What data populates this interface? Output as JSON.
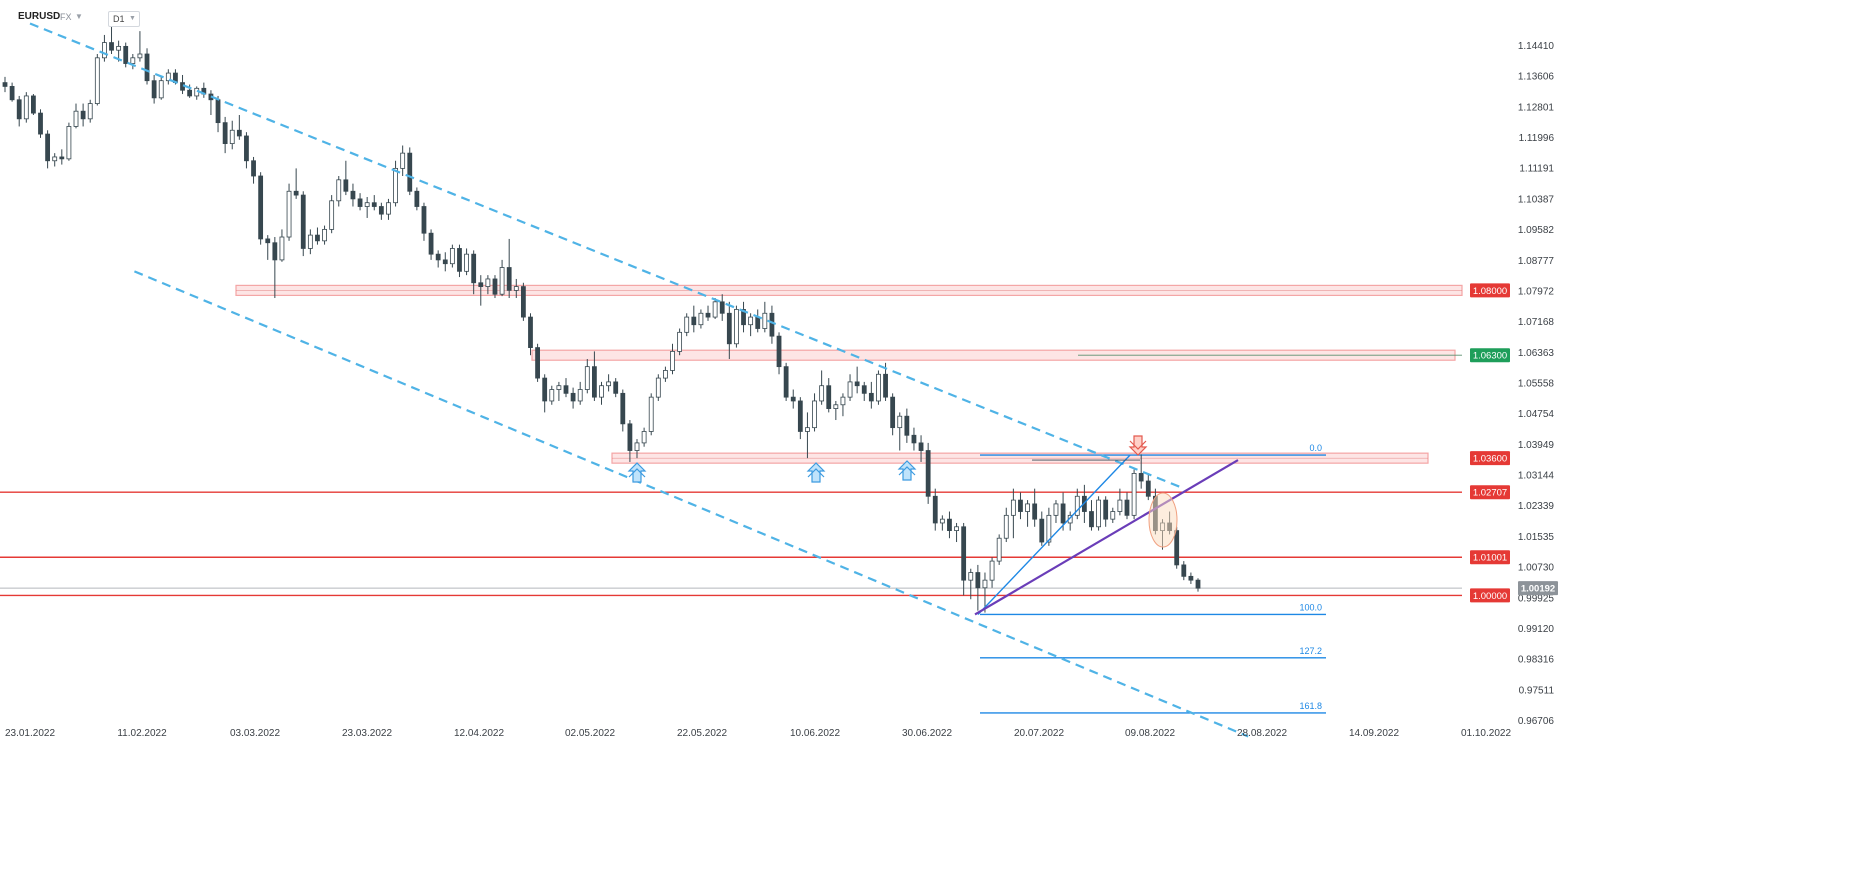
{
  "header": {
    "symbol": "EURUSD",
    "market": "FX",
    "timeframe": "D1"
  },
  "colors": {
    "bull": "#ffffff",
    "bear": "#37474f",
    "channel": "#4fb3e6",
    "support_line": "#e53935",
    "zone": "#f4a5a5",
    "fib": "#1e88e5",
    "trendline": "#6a3db8",
    "current": "#8d9399",
    "badge_red": "#e53935",
    "badge_green": "#1e9e5a"
  },
  "chart_data": {
    "type": "candlestick",
    "symbol": "EURUSD",
    "timeframe": "D1",
    "ylim": [
      0.963,
      1.149
    ],
    "y_ticks": [
      1.1441,
      1.13606,
      1.12801,
      1.11996,
      1.11191,
      1.10387,
      1.09582,
      1.08777,
      1.07972,
      1.07168,
      1.06363,
      1.05558,
      1.04754,
      1.03949,
      1.03144,
      1.02339,
      1.01535,
      1.0073,
      0.99925,
      0.9912,
      0.98316,
      0.97511,
      0.96706
    ],
    "x_labels": [
      "23.01.2022",
      "11.02.2022",
      "03.03.2022",
      "23.03.2022",
      "12.04.2022",
      "02.05.2022",
      "22.05.2022",
      "10.06.2022",
      "30.06.2022",
      "20.07.2022",
      "09.08.2022",
      "28.08.2022",
      "14.09.2022",
      "01.10.2022"
    ],
    "candles": [
      [
        1.1345,
        1.136,
        1.132,
        1.1335
      ],
      [
        1.1335,
        1.1345,
        1.1295,
        1.13
      ],
      [
        1.13,
        1.131,
        1.123,
        1.125
      ],
      [
        1.125,
        1.132,
        1.124,
        1.131
      ],
      [
        1.131,
        1.1315,
        1.126,
        1.1265
      ],
      [
        1.1265,
        1.1275,
        1.12,
        1.121
      ],
      [
        1.121,
        1.122,
        1.112,
        1.114
      ],
      [
        1.114,
        1.116,
        1.1125,
        1.115
      ],
      [
        1.115,
        1.117,
        1.113,
        1.1145
      ],
      [
        1.1145,
        1.124,
        1.114,
        1.123
      ],
      [
        1.123,
        1.129,
        1.1225,
        1.127
      ],
      [
        1.127,
        1.129,
        1.123,
        1.125
      ],
      [
        1.125,
        1.13,
        1.124,
        1.129
      ],
      [
        1.129,
        1.142,
        1.1285,
        1.141
      ],
      [
        1.141,
        1.147,
        1.14,
        1.145
      ],
      [
        1.145,
        1.1495,
        1.142,
        1.143
      ],
      [
        1.143,
        1.1455,
        1.14,
        1.144
      ],
      [
        1.144,
        1.145,
        1.1385,
        1.1395
      ],
      [
        1.1395,
        1.142,
        1.138,
        1.141
      ],
      [
        1.141,
        1.148,
        1.14,
        1.142
      ],
      [
        1.142,
        1.1435,
        1.134,
        1.135
      ],
      [
        1.135,
        1.1365,
        1.129,
        1.1305
      ],
      [
        1.1305,
        1.136,
        1.13,
        1.135
      ],
      [
        1.135,
        1.138,
        1.134,
        1.137
      ],
      [
        1.137,
        1.138,
        1.134,
        1.1345
      ],
      [
        1.1345,
        1.1365,
        1.1315,
        1.1325
      ],
      [
        1.1325,
        1.134,
        1.1305,
        1.131
      ],
      [
        1.131,
        1.1335,
        1.13,
        1.133
      ],
      [
        1.133,
        1.1345,
        1.1305,
        1.1315
      ],
      [
        1.1315,
        1.1325,
        1.126,
        1.13
      ],
      [
        1.13,
        1.131,
        1.1215,
        1.124
      ],
      [
        1.124,
        1.1255,
        1.116,
        1.1185
      ],
      [
        1.1185,
        1.1245,
        1.117,
        1.122
      ],
      [
        1.122,
        1.126,
        1.1195,
        1.1205
      ],
      [
        1.1205,
        1.1215,
        1.112,
        1.114
      ],
      [
        1.114,
        1.115,
        1.108,
        1.11
      ],
      [
        1.11,
        1.111,
        1.092,
        1.0935
      ],
      [
        1.0935,
        1.0945,
        1.088,
        1.0925
      ],
      [
        1.0925,
        1.094,
        1.078,
        1.088
      ],
      [
        1.088,
        1.096,
        1.0875,
        1.094
      ],
      [
        1.094,
        1.108,
        1.093,
        1.106
      ],
      [
        1.106,
        1.112,
        1.104,
        1.105
      ],
      [
        1.105,
        1.106,
        1.089,
        1.091
      ],
      [
        1.091,
        1.096,
        1.0895,
        1.0945
      ],
      [
        1.0945,
        1.0965,
        1.092,
        1.093
      ],
      [
        1.093,
        1.097,
        1.092,
        1.096
      ],
      [
        1.096,
        1.105,
        1.095,
        1.1035
      ],
      [
        1.1035,
        1.11,
        1.102,
        1.109
      ],
      [
        1.109,
        1.114,
        1.105,
        1.106
      ],
      [
        1.106,
        1.108,
        1.102,
        1.104
      ],
      [
        1.104,
        1.1055,
        1.101,
        1.102
      ],
      [
        1.102,
        1.1045,
        1.099,
        1.103
      ],
      [
        1.103,
        1.105,
        1.101,
        1.102
      ],
      [
        1.102,
        1.103,
        1.0985,
        1.1
      ],
      [
        1.1,
        1.104,
        1.0985,
        1.103
      ],
      [
        1.103,
        1.114,
        1.102,
        1.112
      ],
      [
        1.112,
        1.118,
        1.11,
        1.116
      ],
      [
        1.116,
        1.1175,
        1.105,
        1.106
      ],
      [
        1.106,
        1.107,
        1.101,
        1.102
      ],
      [
        1.102,
        1.103,
        1.093,
        1.095
      ],
      [
        1.095,
        1.096,
        1.088,
        1.0895
      ],
      [
        1.0895,
        1.0905,
        1.086,
        1.088
      ],
      [
        1.088,
        1.09,
        1.085,
        1.087
      ],
      [
        1.087,
        1.092,
        1.086,
        1.091
      ],
      [
        1.091,
        1.092,
        1.0835,
        1.085
      ],
      [
        1.085,
        1.091,
        1.084,
        1.0895
      ],
      [
        1.0895,
        1.0905,
        1.079,
        1.082
      ],
      [
        1.082,
        1.084,
        1.076,
        1.081
      ],
      [
        1.081,
        1.084,
        1.079,
        1.083
      ],
      [
        1.083,
        1.084,
        1.078,
        1.079
      ],
      [
        1.079,
        1.088,
        1.0785,
        1.086
      ],
      [
        1.086,
        1.0935,
        1.078,
        1.08
      ],
      [
        1.08,
        1.083,
        1.078,
        1.081
      ],
      [
        1.081,
        1.082,
        1.072,
        1.073
      ],
      [
        1.073,
        1.074,
        1.063,
        1.065
      ],
      [
        1.065,
        1.066,
        1.056,
        1.057
      ],
      [
        1.057,
        1.058,
        1.048,
        1.051
      ],
      [
        1.051,
        1.055,
        1.05,
        1.054
      ],
      [
        1.054,
        1.056,
        1.051,
        1.055
      ],
      [
        1.055,
        1.057,
        1.052,
        1.053
      ],
      [
        1.053,
        1.0545,
        1.049,
        1.051
      ],
      [
        1.051,
        1.056,
        1.05,
        1.054
      ],
      [
        1.054,
        1.062,
        1.053,
        1.06
      ],
      [
        1.06,
        1.064,
        1.051,
        1.052
      ],
      [
        1.052,
        1.056,
        1.05,
        1.055
      ],
      [
        1.055,
        1.058,
        1.0535,
        1.056
      ],
      [
        1.056,
        1.057,
        1.052,
        1.053
      ],
      [
        1.053,
        1.054,
        1.043,
        1.045
      ],
      [
        1.045,
        1.046,
        1.035,
        1.038
      ],
      [
        1.038,
        1.041,
        1.036,
        1.04
      ],
      [
        1.04,
        1.044,
        1.039,
        1.043
      ],
      [
        1.043,
        1.053,
        1.042,
        1.052
      ],
      [
        1.052,
        1.058,
        1.051,
        1.057
      ],
      [
        1.057,
        1.06,
        1.056,
        1.059
      ],
      [
        1.059,
        1.066,
        1.058,
        1.064
      ],
      [
        1.064,
        1.07,
        1.063,
        1.069
      ],
      [
        1.069,
        1.074,
        1.068,
        1.073
      ],
      [
        1.073,
        1.076,
        1.069,
        1.071
      ],
      [
        1.071,
        1.075,
        1.07,
        1.074
      ],
      [
        1.074,
        1.076,
        1.072,
        1.073
      ],
      [
        1.073,
        1.078,
        1.0725,
        1.077
      ],
      [
        1.077,
        1.079,
        1.072,
        1.074
      ],
      [
        1.074,
        1.077,
        1.062,
        1.066
      ],
      [
        1.066,
        1.076,
        1.065,
        1.075
      ],
      [
        1.075,
        1.077,
        1.069,
        1.071
      ],
      [
        1.071,
        1.074,
        1.068,
        1.073
      ],
      [
        1.073,
        1.075,
        1.069,
        1.07
      ],
      [
        1.07,
        1.077,
        1.069,
        1.074
      ],
      [
        1.074,
        1.076,
        1.066,
        1.068
      ],
      [
        1.068,
        1.069,
        1.058,
        1.06
      ],
      [
        1.06,
        1.061,
        1.051,
        1.052
      ],
      [
        1.052,
        1.054,
        1.049,
        1.051
      ],
      [
        1.051,
        1.052,
        1.041,
        1.043
      ],
      [
        1.043,
        1.048,
        1.036,
        1.044
      ],
      [
        1.044,
        1.053,
        1.043,
        1.051
      ],
      [
        1.051,
        1.059,
        1.05,
        1.055
      ],
      [
        1.055,
        1.057,
        1.048,
        1.049
      ],
      [
        1.049,
        1.051,
        1.046,
        1.05
      ],
      [
        1.05,
        1.053,
        1.047,
        1.052
      ],
      [
        1.052,
        1.058,
        1.051,
        1.056
      ],
      [
        1.056,
        1.06,
        1.053,
        1.055
      ],
      [
        1.055,
        1.056,
        1.051,
        1.053
      ],
      [
        1.053,
        1.056,
        1.049,
        1.051
      ],
      [
        1.051,
        1.059,
        1.05,
        1.058
      ],
      [
        1.058,
        1.061,
        1.051,
        1.052
      ],
      [
        1.052,
        1.053,
        1.042,
        1.044
      ],
      [
        1.044,
        1.048,
        1.038,
        1.047
      ],
      [
        1.047,
        1.049,
        1.04,
        1.042
      ],
      [
        1.042,
        1.044,
        1.038,
        1.04
      ],
      [
        1.04,
        1.042,
        1.035,
        1.038
      ],
      [
        1.038,
        1.04,
        1.024,
        1.026
      ],
      [
        1.026,
        1.028,
        1.017,
        1.019
      ],
      [
        1.019,
        1.021,
        1.017,
        1.02
      ],
      [
        1.02,
        1.022,
        1.015,
        1.017
      ],
      [
        1.017,
        1.019,
        1.014,
        1.018
      ],
      [
        1.018,
        1.019,
        1.0,
        1.004
      ],
      [
        1.004,
        1.007,
        0.999,
        1.006
      ],
      [
        1.006,
        1.008,
        0.996,
        1.002
      ],
      [
        1.002,
        1.006,
        0.9955,
        1.004
      ],
      [
        1.004,
        1.01,
        1.002,
        1.009
      ],
      [
        1.009,
        1.016,
        1.008,
        1.015
      ],
      [
        1.015,
        1.023,
        1.014,
        1.021
      ],
      [
        1.021,
        1.028,
        1.015,
        1.025
      ],
      [
        1.025,
        1.027,
        1.02,
        1.022
      ],
      [
        1.022,
        1.025,
        1.018,
        1.024
      ],
      [
        1.024,
        1.028,
        1.018,
        1.02
      ],
      [
        1.02,
        1.022,
        1.013,
        1.014
      ],
      [
        1.014,
        1.023,
        1.013,
        1.021
      ],
      [
        1.021,
        1.025,
        1.019,
        1.024
      ],
      [
        1.024,
        1.027,
        1.017,
        1.019
      ],
      [
        1.019,
        1.022,
        1.017,
        1.021
      ],
      [
        1.021,
        1.028,
        1.02,
        1.026
      ],
      [
        1.026,
        1.029,
        1.019,
        1.022
      ],
      [
        1.022,
        1.025,
        1.017,
        1.018
      ],
      [
        1.018,
        1.026,
        1.017,
        1.025
      ],
      [
        1.025,
        1.026,
        1.018,
        1.02
      ],
      [
        1.02,
        1.023,
        1.019,
        1.022
      ],
      [
        1.022,
        1.028,
        1.021,
        1.025
      ],
      [
        1.025,
        1.027,
        1.02,
        1.021
      ],
      [
        1.021,
        1.033,
        1.02,
        1.032
      ],
      [
        1.032,
        1.037,
        1.028,
        1.03
      ],
      [
        1.03,
        1.032,
        1.025,
        1.026
      ],
      [
        1.026,
        1.028,
        1.016,
        1.017
      ],
      [
        1.017,
        1.02,
        1.012,
        1.019
      ],
      [
        1.019,
        1.022,
        1.016,
        1.017
      ],
      [
        1.017,
        1.018,
        1.007,
        1.008
      ],
      [
        1.008,
        1.009,
        1.004,
        1.005
      ],
      [
        1.005,
        1.006,
        1.003,
        1.004
      ],
      [
        1.004,
        1.0045,
        1.001,
        1.0019
      ]
    ],
    "channel_upper": [
      [
        "23.01.2022",
        1.15
      ],
      [
        "10.08.2022",
        1.028
      ]
    ],
    "channel_lower": [
      [
        "10.02.2022",
        1.085
      ],
      [
        "21.08.2022",
        0.963
      ]
    ],
    "horizontal_levels": [
      {
        "label": "1.08000",
        "value": 1.08,
        "kind": "zone",
        "badge": "red"
      },
      {
        "label": "1.06300",
        "value": 1.063,
        "kind": "zone",
        "badge": "green"
      },
      {
        "label": "1.03600",
        "value": 1.036,
        "kind": "zone",
        "badge": "red"
      },
      {
        "label": "1.02707",
        "value": 1.02707,
        "kind": "line",
        "badge": "red"
      },
      {
        "label": "1.01001",
        "value": 1.01001,
        "kind": "line",
        "badge": "red"
      },
      {
        "label": "1.00000",
        "value": 1.0,
        "kind": "line",
        "badge": "red"
      }
    ],
    "current_price": {
      "label": "1.00192",
      "value": 1.00192
    },
    "fibonacci": [
      {
        "label": "0.0",
        "value": 1.0368
      },
      {
        "label": "100.0",
        "value": 0.995
      },
      {
        "label": "127.2",
        "value": 0.98363
      },
      {
        "label": "161.8",
        "value": 0.96917
      }
    ]
  }
}
